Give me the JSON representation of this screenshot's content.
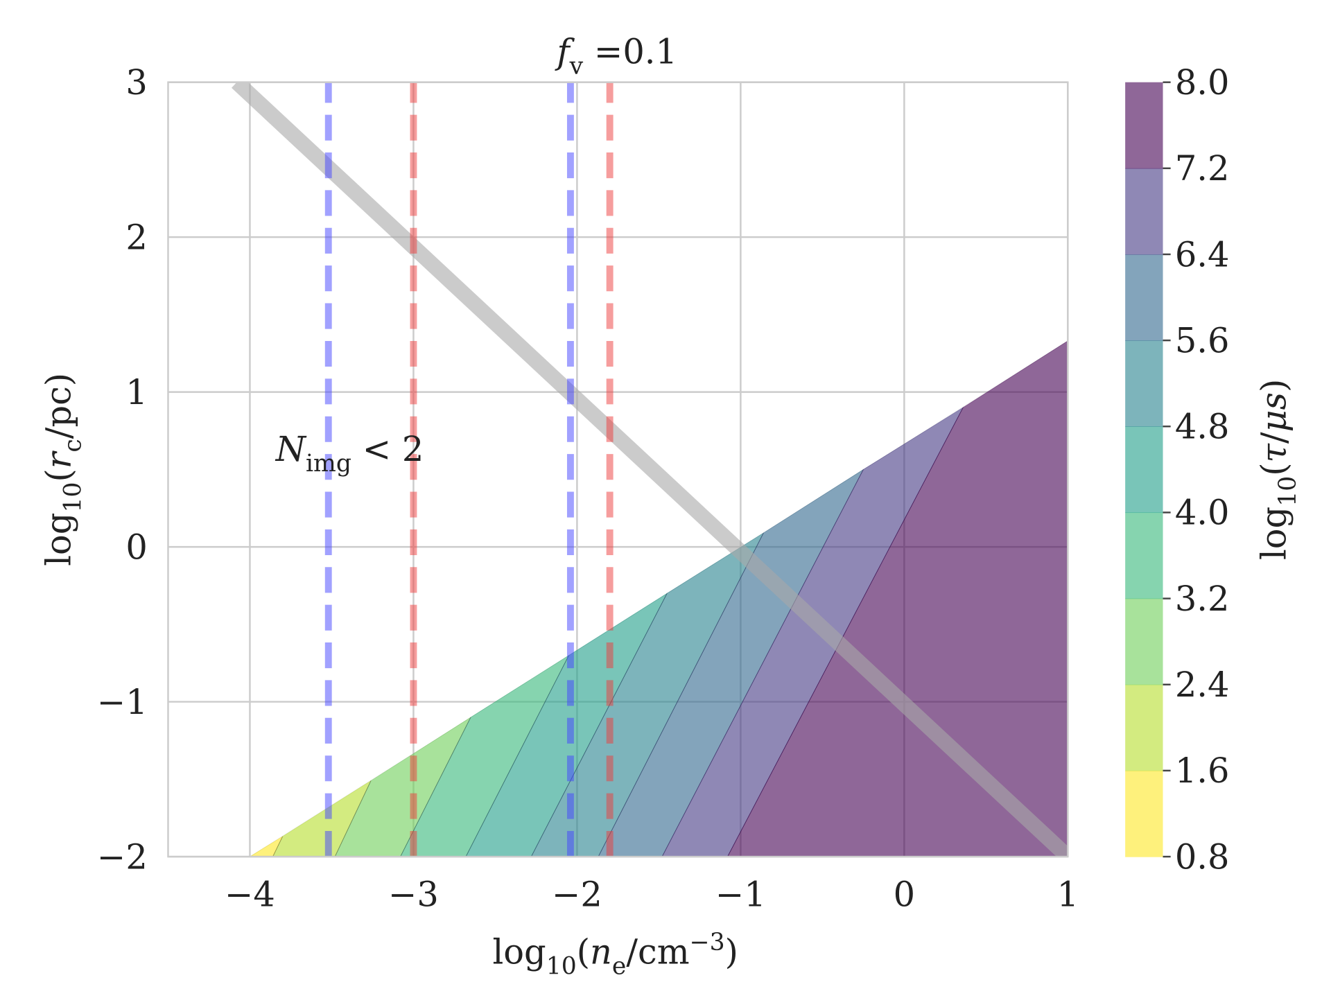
{
  "chart_data": {
    "type": "contour",
    "title_parts": [
      "f",
      "v",
      " =0.1"
    ],
    "xlabel_parts": [
      "log",
      "10",
      "(",
      "n",
      "e",
      "/cm",
      "−3",
      ")"
    ],
    "ylabel_parts": [
      "log",
      "10",
      "(",
      "r",
      "c",
      "/pc)"
    ],
    "annotation_parts": [
      "N",
      "img",
      " < 2"
    ],
    "xlim": [
      -4.5,
      1
    ],
    "ylim": [
      -2,
      3
    ],
    "xticks": [
      {
        "value": -4,
        "label": "−4"
      },
      {
        "value": -3,
        "label": "−3"
      },
      {
        "value": -2,
        "label": "−2"
      },
      {
        "value": -1,
        "label": "−1"
      },
      0,
      1
    ],
    "yticks": [
      {
        "value": -2,
        "label": "−2"
      },
      {
        "value": -1,
        "label": "−1"
      },
      0,
      1,
      2,
      3
    ],
    "grid": true,
    "region_edge": {
      "x": [
        -4,
        1
      ],
      "y": [
        -2,
        1.33
      ]
    },
    "boundaries": [
      {
        "x": [
          -3.86,
          -3.8
        ],
        "y": [
          -2,
          -1.87
        ]
      },
      {
        "x": [
          -3.48,
          -3.26
        ],
        "y": [
          -2,
          -1.51
        ]
      },
      {
        "x": [
          -3.08,
          -2.65
        ],
        "y": [
          -2,
          -1.1
        ]
      },
      {
        "x": [
          -2.68,
          -2.05
        ],
        "y": [
          -2,
          -0.7
        ]
      },
      {
        "x": [
          -2.28,
          -1.45
        ],
        "y": [
          -2,
          -0.3
        ]
      },
      {
        "x": [
          -1.87,
          -0.86
        ],
        "y": [
          -2,
          0.09
        ]
      },
      {
        "x": [
          -1.48,
          -0.25
        ],
        "y": [
          -2,
          0.5
        ]
      },
      {
        "x": [
          -1.08,
          0.36
        ],
        "y": [
          -2,
          0.9
        ]
      }
    ],
    "band_colors": [
      "#fde725",
      "#b5de2b",
      "#6ece58",
      "#35b779",
      "#1f9e89",
      "#26828e",
      "#31688e",
      "#443983",
      "#440154"
    ],
    "alpha": 0.6,
    "colorbar": {
      "ticks": [
        0.8,
        1.6,
        2.4,
        3.2,
        {
          "value": 4,
          "label": "4.0"
        },
        4.8,
        5.6,
        6.4,
        7.2,
        {
          "value": 8,
          "label": "8.0"
        }
      ],
      "label_parts": [
        "log",
        "10",
        "(",
        "τ",
        "/",
        "μs",
        ")"
      ]
    },
    "lines": [
      {
        "x": [
          -4.08,
          1
        ],
        "y": [
          3,
          -2
        ],
        "color": "#a9a9a9",
        "style": "solid"
      },
      {
        "x": [
          -3.52,
          -3.52
        ],
        "y": [
          -2,
          3
        ],
        "color": "#4444ff",
        "style": "dashed"
      },
      {
        "x": [
          -3.0,
          -3.0
        ],
        "y": [
          -2,
          3
        ],
        "color": "#ee3b3b",
        "style": "dashed"
      },
      {
        "x": [
          -2.04,
          -2.04
        ],
        "y": [
          -2,
          3
        ],
        "color": "#4444ff",
        "style": "dashed"
      },
      {
        "x": [
          -1.8,
          -1.8
        ],
        "y": [
          -2,
          3
        ],
        "color": "#ee3b3b",
        "style": "dashed"
      }
    ]
  }
}
